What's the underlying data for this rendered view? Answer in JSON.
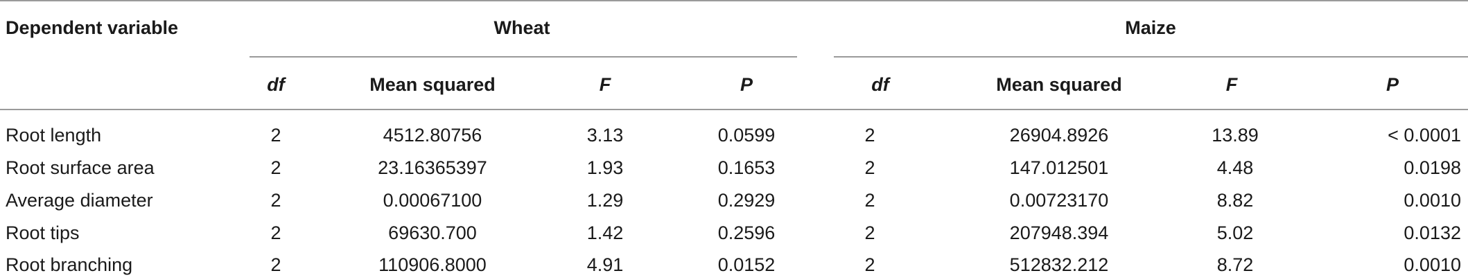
{
  "table": {
    "header": {
      "dependent_variable": "Dependent variable",
      "groups": [
        "Wheat",
        "Maize"
      ],
      "subcolumns": [
        "df",
        "Mean squared",
        "F",
        "P"
      ]
    },
    "rows": [
      {
        "label": "Root length",
        "wheat": [
          "2",
          "4512.80756",
          "3.13",
          "0.0599"
        ],
        "maize": [
          "2",
          "26904.8926",
          "13.89",
          "< 0.0001"
        ]
      },
      {
        "label": "Root surface area",
        "wheat": [
          "2",
          "23.16365397",
          "1.93",
          "0.1653"
        ],
        "maize": [
          "2",
          "147.012501",
          "4.48",
          "0.0198"
        ]
      },
      {
        "label": "Average diameter",
        "wheat": [
          "2",
          "0.00067100",
          "1.29",
          "0.2929"
        ],
        "maize": [
          "2",
          "0.00723170",
          "8.82",
          "0.0010"
        ]
      },
      {
        "label": "Root tips",
        "wheat": [
          "2",
          "69630.700",
          "1.42",
          "0.2596"
        ],
        "maize": [
          "2",
          "207948.394",
          "5.02",
          "0.0132"
        ]
      },
      {
        "label": "Root branching",
        "wheat": [
          "2",
          "110906.8000",
          "4.91",
          "0.0152"
        ],
        "maize": [
          "2",
          "512832.212",
          "8.72",
          "0.0010"
        ]
      }
    ]
  }
}
